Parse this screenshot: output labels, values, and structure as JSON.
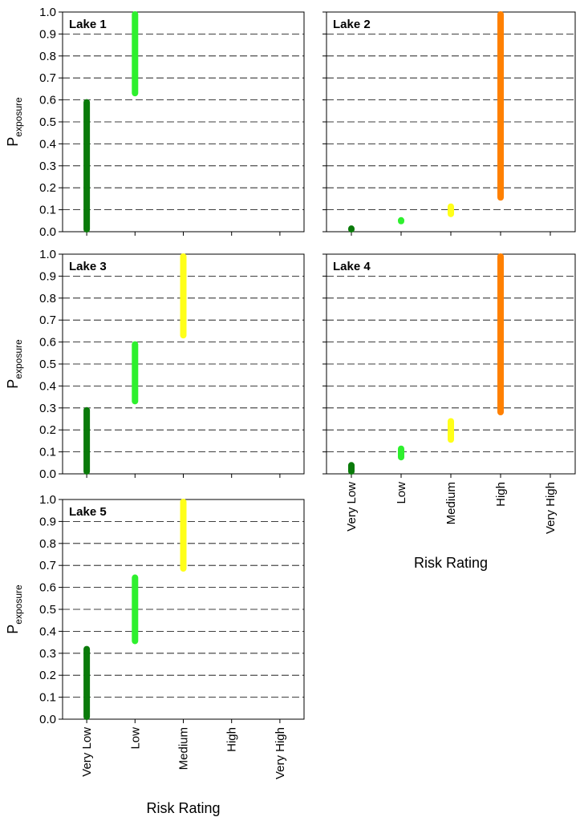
{
  "chart_data": {
    "type": "range",
    "categories": [
      "Very Low",
      "Low",
      "Medium",
      "High",
      "Very High"
    ],
    "xlabel": "Risk Rating",
    "ylabel_main": "P",
    "ylabel_sub": "exposure",
    "ylim": [
      0.0,
      1.0
    ],
    "yticks": [
      "0.0",
      "0.1",
      "0.2",
      "0.3",
      "0.4",
      "0.5",
      "0.6",
      "0.7",
      "0.8",
      "0.9",
      "1.0"
    ],
    "grid": "horizontal dashed",
    "colors": {
      "Very Low": "#0a7a0a",
      "Low": "#2ef02e",
      "Medium": "#ffff19",
      "High": "#ff8000",
      "Very High": "#cc0000"
    },
    "panels": [
      {
        "title": "Lake 1",
        "ranges": [
          {
            "category": "Very Low",
            "low": 0.0,
            "high": 0.6
          },
          {
            "category": "Low",
            "low": 0.62,
            "high": 1.0
          }
        ]
      },
      {
        "title": "Lake 2",
        "ranges": [
          {
            "category": "Very Low",
            "low": 0.0,
            "high": 0.025
          },
          {
            "category": "Low",
            "low": 0.04,
            "high": 0.06
          },
          {
            "category": "Medium",
            "low": 0.07,
            "high": 0.125
          },
          {
            "category": "High",
            "low": 0.145,
            "high": 1.0
          }
        ]
      },
      {
        "title": "Lake 3",
        "ranges": [
          {
            "category": "Very Low",
            "low": 0.0,
            "high": 0.3
          },
          {
            "category": "Low",
            "low": 0.32,
            "high": 0.6
          },
          {
            "category": "Medium",
            "low": 0.62,
            "high": 1.0
          }
        ]
      },
      {
        "title": "Lake 4",
        "ranges": [
          {
            "category": "Very Low",
            "low": 0.0,
            "high": 0.05
          },
          {
            "category": "Low",
            "low": 0.065,
            "high": 0.125
          },
          {
            "category": "Medium",
            "low": 0.145,
            "high": 0.25
          },
          {
            "category": "High",
            "low": 0.27,
            "high": 1.0
          }
        ]
      },
      {
        "title": "Lake 5",
        "ranges": [
          {
            "category": "Very Low",
            "low": 0.0,
            "high": 0.33
          },
          {
            "category": "Low",
            "low": 0.345,
            "high": 0.655
          },
          {
            "category": "Medium",
            "low": 0.675,
            "high": 1.0
          }
        ]
      }
    ]
  }
}
